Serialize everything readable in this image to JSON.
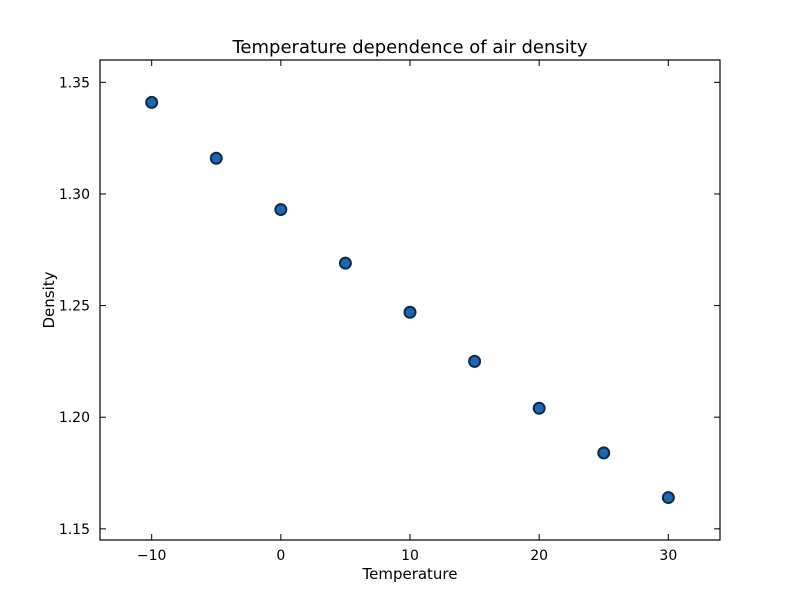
{
  "chart_data": {
    "type": "scatter",
    "title": "Temperature dependence of air density",
    "xlabel": "Temperature",
    "ylabel": "Density",
    "xlim": [
      -14,
      34
    ],
    "ylim": [
      1.145,
      1.36
    ],
    "xticks": [
      -10,
      0,
      10,
      20,
      30
    ],
    "xtick_labels": [
      "−10",
      "0",
      "10",
      "20",
      "30"
    ],
    "yticks": [
      1.15,
      1.2,
      1.25,
      1.3,
      1.35
    ],
    "ytick_labels": [
      "1.15",
      "1.20",
      "1.25",
      "1.30",
      "1.35"
    ],
    "grid": false,
    "marker_color": "#2166ac",
    "marker_edge_color": "#0d2a4a",
    "series": [
      {
        "x": [
          -10,
          -5,
          0,
          5,
          10,
          15,
          20,
          25,
          30
        ],
        "y": [
          1.341,
          1.316,
          1.293,
          1.269,
          1.247,
          1.225,
          1.204,
          1.184,
          1.164
        ]
      }
    ]
  }
}
